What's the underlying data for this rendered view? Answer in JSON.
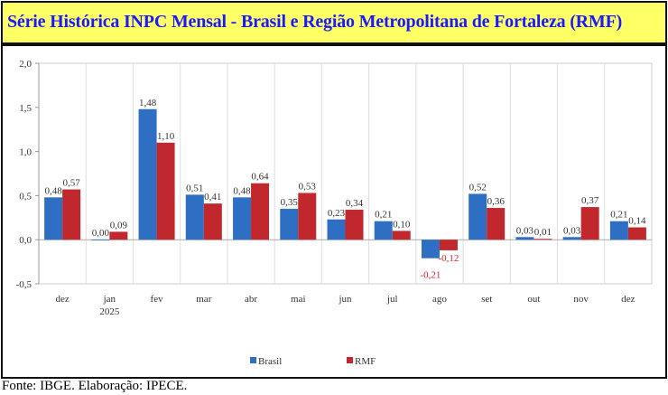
{
  "title": "Série Histórica INPC Mensal - Brasil e Região Metropolitana de Fortaleza (RMF)",
  "source": "Fonte: IBGE. Elaboração: IPECE.",
  "chart_data": {
    "type": "bar",
    "title": "Série Histórica INPC Mensal - Brasil e Região Metropolitana de Fortaleza (RMF)",
    "categories": [
      [
        "dez"
      ],
      [
        "jan",
        "2025"
      ],
      [
        "fev"
      ],
      [
        "mar"
      ],
      [
        "abr"
      ],
      [
        "mai"
      ],
      [
        "jun"
      ],
      [
        "jul"
      ],
      [
        "ago"
      ],
      [
        "set"
      ],
      [
        "out"
      ],
      [
        "nov"
      ],
      [
        "dez"
      ]
    ],
    "series": [
      {
        "name": "Brasil",
        "color": "#2e6fc4",
        "values": [
          0.48,
          0.0,
          1.48,
          0.51,
          0.48,
          0.35,
          0.23,
          0.21,
          -0.21,
          0.52,
          0.03,
          0.03,
          0.21
        ]
      },
      {
        "name": "RMF",
        "color": "#c0282d",
        "values": [
          0.57,
          0.09,
          1.1,
          0.41,
          0.64,
          0.53,
          0.34,
          0.1,
          -0.12,
          0.36,
          0.01,
          0.37,
          0.14
        ]
      }
    ],
    "data_labels": {
      "Brasil": [
        "0,48",
        "0,00",
        "1,48",
        "0,51",
        "0,48",
        "0,35",
        "0,23",
        "0,21",
        "-0,21",
        "0,52",
        "0,03",
        "0,03",
        "0,21"
      ],
      "RMF": [
        "0,57",
        "0,09",
        "1,10",
        "0,41",
        "0,64",
        "0,53",
        "0,34",
        "0,10",
        "-0,12",
        "0,36",
        "0,01",
        "0,37",
        "0,14"
      ]
    },
    "yticks": [
      "2,0",
      "1,5",
      "1,0",
      "0,5",
      "0,0",
      "-0,5"
    ],
    "ytick_values": [
      2.0,
      1.5,
      1.0,
      0.5,
      0.0,
      -0.5
    ],
    "ylim": [
      -0.5,
      2.0
    ],
    "negative_label_color": "#e0202a",
    "grid": "vertical category separators",
    "legend": "bottom-center",
    "xlabel": "",
    "ylabel": ""
  }
}
